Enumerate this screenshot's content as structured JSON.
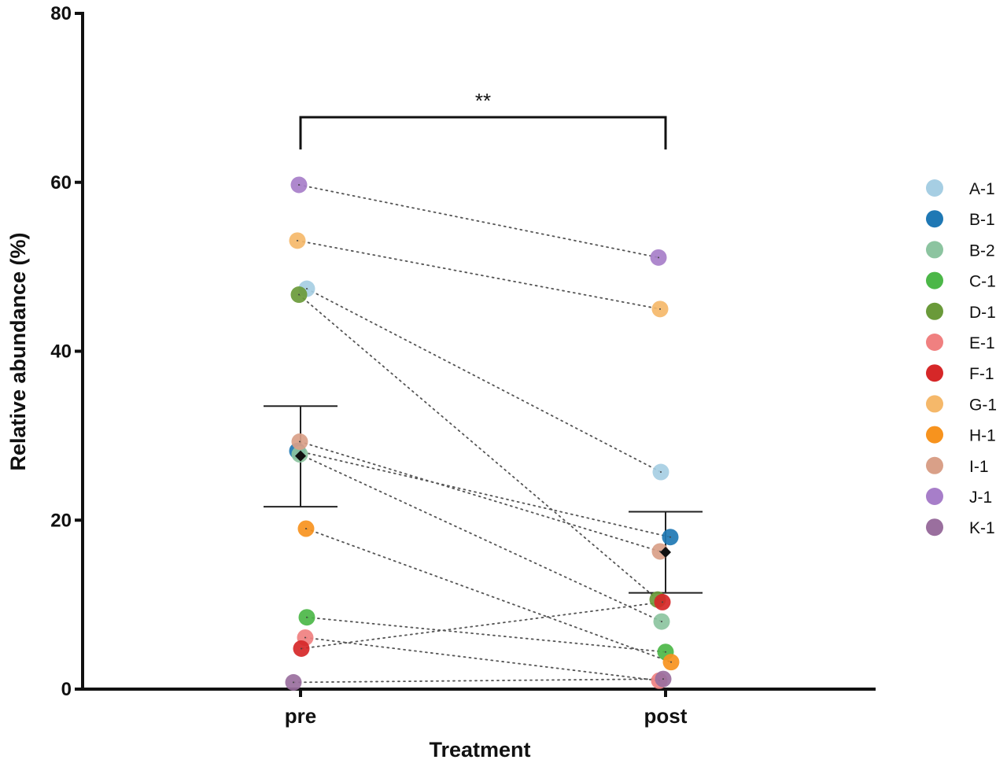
{
  "chart_data": {
    "type": "scatter",
    "subtype": "paired dot plot with mean ± SEM",
    "title": "",
    "xlabel": "Treatment",
    "ylabel": "Relative abundance (%)",
    "ylim": [
      0,
      80
    ],
    "yticks": [
      0,
      20,
      40,
      60,
      80
    ],
    "categories": [
      "pre",
      "post"
    ],
    "grid": false,
    "legend_position": "right",
    "significance": {
      "label": "**",
      "between": [
        "pre",
        "post"
      ]
    },
    "series": [
      {
        "name": "A-1",
        "color": "#a6cee3",
        "values": [
          47.4,
          25.7
        ]
      },
      {
        "name": "B-1",
        "color": "#1f78b4",
        "values": [
          28.2,
          18.0
        ]
      },
      {
        "name": "B-2",
        "color": "#8cc4a0",
        "values": [
          27.8,
          8.0
        ]
      },
      {
        "name": "C-1",
        "color": "#4cb748",
        "values": [
          8.5,
          4.4
        ]
      },
      {
        "name": "D-1",
        "color": "#6a9a3a",
        "values": [
          46.7,
          10.6
        ]
      },
      {
        "name": "E-1",
        "color": "#f08080",
        "values": [
          6.1,
          1.0
        ]
      },
      {
        "name": "F-1",
        "color": "#d62728",
        "values": [
          4.8,
          10.3
        ]
      },
      {
        "name": "G-1",
        "color": "#f5b86a",
        "values": [
          53.1,
          45.0
        ]
      },
      {
        "name": "H-1",
        "color": "#f7931e",
        "values": [
          19.0,
          3.2
        ]
      },
      {
        "name": "I-1",
        "color": "#d9a088",
        "values": [
          29.3,
          16.3
        ]
      },
      {
        "name": "J-1",
        "color": "#a77ec9",
        "values": [
          59.7,
          51.1
        ]
      },
      {
        "name": "K-1",
        "color": "#9a6f9e",
        "values": [
          0.8,
          1.2
        ]
      }
    ],
    "summary": [
      {
        "category": "pre",
        "mean": 27.6,
        "upper": 33.5,
        "lower": 21.6
      },
      {
        "category": "post",
        "mean": 16.2,
        "upper": 21.0,
        "lower": 11.4
      }
    ]
  }
}
